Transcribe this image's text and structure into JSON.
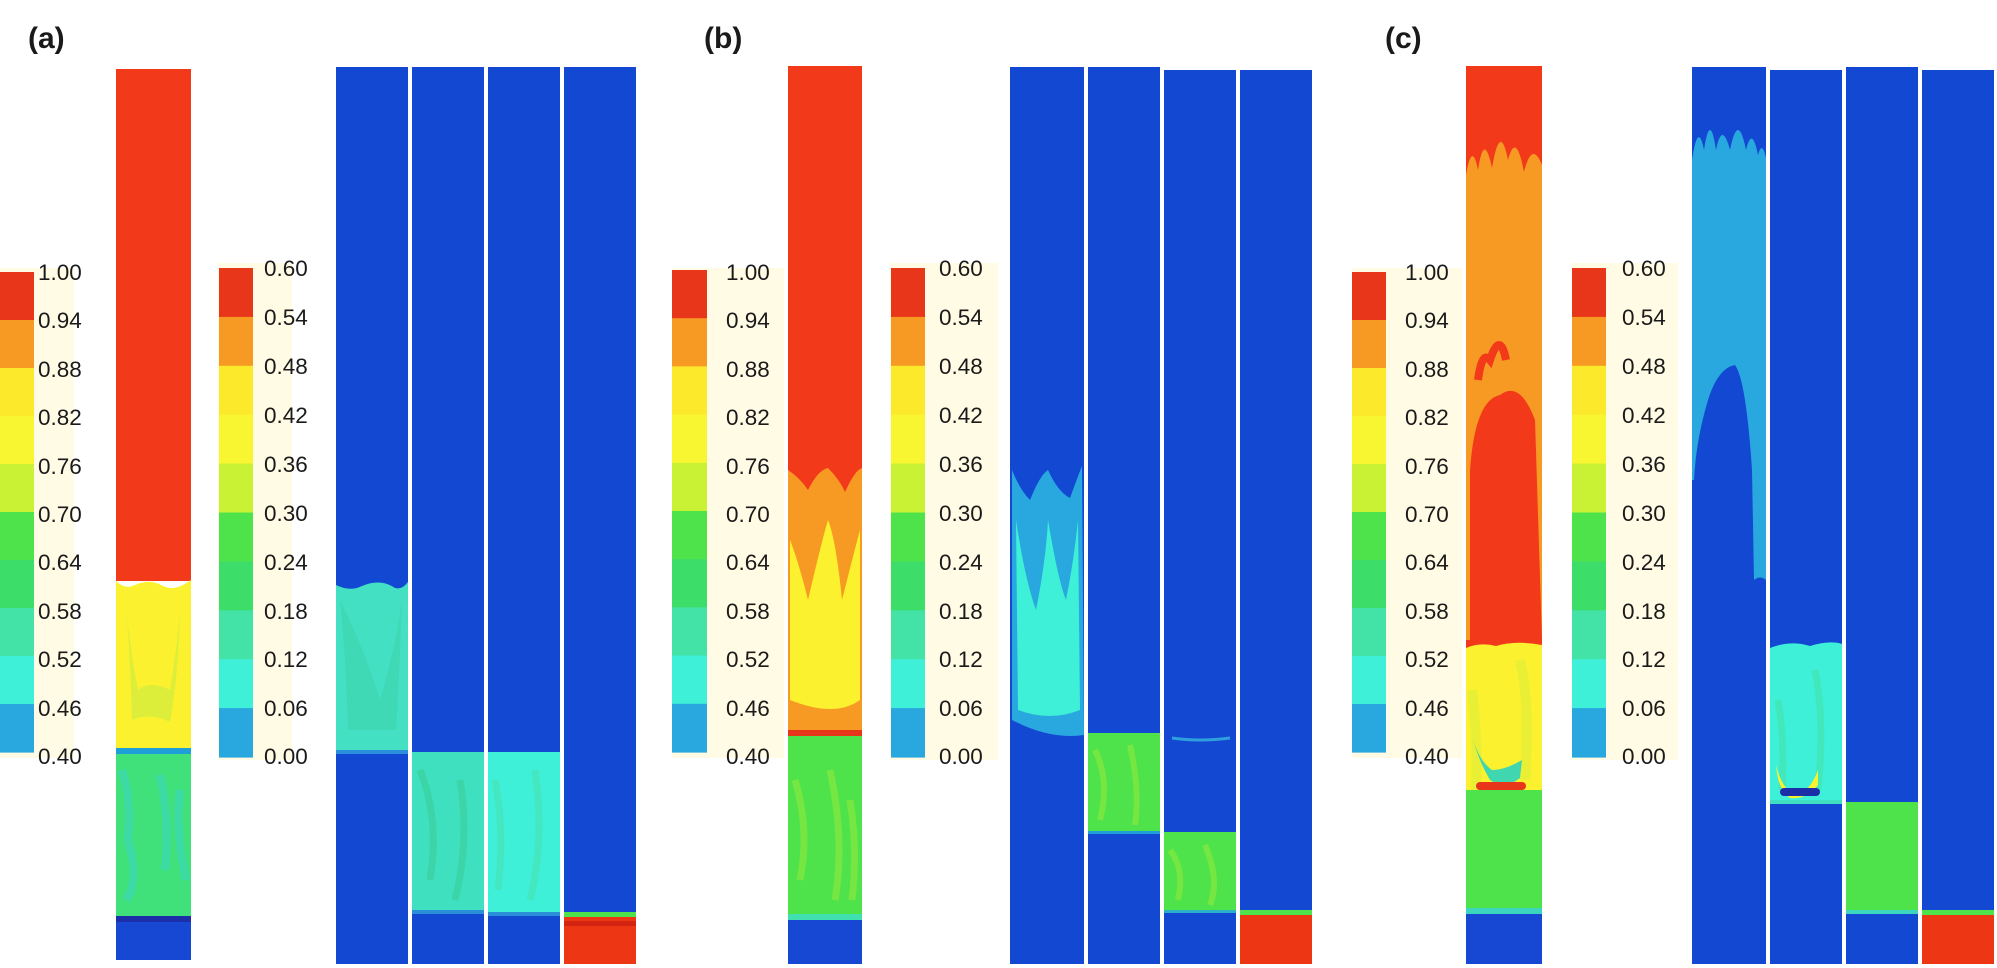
{
  "panels": [
    {
      "label": "(a)",
      "column_scale": [
        "1.00",
        "0.94",
        "0.88",
        "0.82",
        "0.76",
        "0.70",
        "0.64",
        "0.58",
        "0.52",
        "0.46",
        "0.40"
      ],
      "tube_scale": [
        "0.60",
        "0.54",
        "0.48",
        "0.42",
        "0.36",
        "0.30",
        "0.24",
        "0.18",
        "0.12",
        "0.06",
        "0.00"
      ]
    },
    {
      "label": "(b)",
      "column_scale": [
        "1.00",
        "0.94",
        "0.88",
        "0.82",
        "0.76",
        "0.70",
        "0.64",
        "0.58",
        "0.52",
        "0.46",
        "0.40"
      ],
      "tube_scale": [
        "0.60",
        "0.54",
        "0.48",
        "0.42",
        "0.36",
        "0.30",
        "0.24",
        "0.18",
        "0.12",
        "0.06",
        "0.00"
      ]
    },
    {
      "label": "(c)",
      "column_scale": [
        "1.00",
        "0.94",
        "0.88",
        "0.82",
        "0.76",
        "0.70",
        "0.64",
        "0.58",
        "0.52",
        "0.46",
        "0.40"
      ],
      "tube_scale": [
        "0.60",
        "0.54",
        "0.48",
        "0.42",
        "0.36",
        "0.30",
        "0.24",
        "0.18",
        "0.12",
        "0.06",
        "0.00"
      ]
    }
  ],
  "colormap": [
    "#e8361a",
    "#f79a24",
    "#fde92c",
    "#f8f531",
    "#c9f235",
    "#4ee34a",
    "#3ddd6a",
    "#43e3a8",
    "#3ff0d8",
    "#28a8de",
    "#1248d2"
  ]
}
